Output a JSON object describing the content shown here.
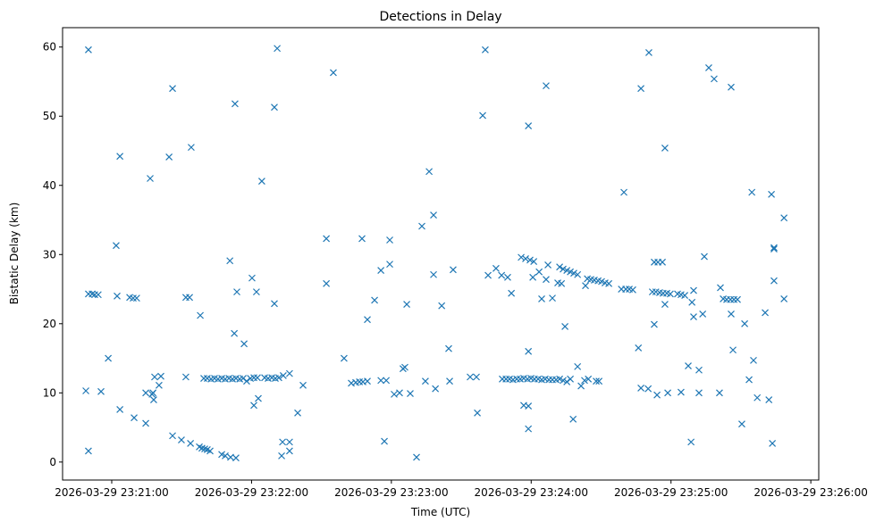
{
  "chart_data": {
    "type": "scatter",
    "title": "Detections in Delay",
    "xlabel": "Time (UTC)",
    "ylabel": "Bistatic Delay (km)",
    "x_unit": "seconds after 2026-03-29 23:20:00",
    "xlim": [
      38.9,
      363.4
    ],
    "ylim": [
      -2.6,
      62.8
    ],
    "grid": false,
    "marker": "x",
    "color": "#1f77b4",
    "xticks": [
      {
        "value": 60,
        "label": "2026-03-29 23:21:00"
      },
      {
        "value": 120,
        "label": "2026-03-29 23:22:00"
      },
      {
        "value": 180,
        "label": "2026-03-29 23:23:00"
      },
      {
        "value": 240,
        "label": "2026-03-29 23:24:00"
      },
      {
        "value": 300,
        "label": "2026-03-29 23:25:00"
      },
      {
        "value": 360,
        "label": "2026-03-29 23:26:00"
      }
    ],
    "yticks": [
      {
        "value": 0,
        "label": "0"
      },
      {
        "value": 10,
        "label": "10"
      },
      {
        "value": 20,
        "label": "20"
      },
      {
        "value": 30,
        "label": "30"
      },
      {
        "value": 40,
        "label": "40"
      },
      {
        "value": 50,
        "label": "50"
      },
      {
        "value": 60,
        "label": "60"
      }
    ],
    "points": [
      [
        48.9,
        10.3
      ],
      [
        50,
        59.6
      ],
      [
        50,
        1.6
      ],
      [
        50,
        24.3
      ],
      [
        51.6,
        24.3
      ],
      [
        52.7,
        24.2
      ],
      [
        54.2,
        24.2
      ],
      [
        55.4,
        10.2
      ],
      [
        58.5,
        15
      ],
      [
        61.9,
        31.3
      ],
      [
        62.3,
        24
      ],
      [
        63.5,
        44.2
      ],
      [
        63.5,
        7.6
      ],
      [
        67.7,
        23.8
      ],
      [
        69.2,
        23.7
      ],
      [
        70.7,
        23.7
      ],
      [
        69.6,
        6.4
      ],
      [
        74.6,
        5.6
      ],
      [
        74.6,
        10
      ],
      [
        76.5,
        41
      ],
      [
        77.3,
        9.8
      ],
      [
        78,
        9
      ],
      [
        77.7,
        10
      ],
      [
        78.4,
        12.3
      ],
      [
        80.3,
        11.1
      ],
      [
        81.1,
        12.4
      ],
      [
        84.6,
        44.1
      ],
      [
        86.1,
        54
      ],
      [
        86.1,
        3.8
      ],
      [
        89.9,
        3.2
      ],
      [
        91.8,
        12.3
      ],
      [
        91.8,
        23.8
      ],
      [
        93.4,
        23.8
      ],
      [
        93.8,
        2.7
      ],
      [
        94.1,
        45.5
      ],
      [
        98,
        21.2
      ],
      [
        97.6,
        2.2
      ],
      [
        98.7,
        2.0
      ],
      [
        99.9,
        1.9
      ],
      [
        101,
        1.8
      ],
      [
        102.2,
        1.6
      ],
      [
        99.5,
        12.1
      ],
      [
        101,
        12.1
      ],
      [
        102.6,
        12.0
      ],
      [
        104.1,
        12.1
      ],
      [
        105.6,
        12.0
      ],
      [
        107.2,
        12.1
      ],
      [
        108.7,
        12.0
      ],
      [
        110.3,
        12.1
      ],
      [
        111.8,
        12.0
      ],
      [
        113.3,
        12.1
      ],
      [
        114.9,
        12.0
      ],
      [
        116.4,
        12.1
      ],
      [
        117.9,
        11.7
      ],
      [
        119.5,
        12.1
      ],
      [
        121,
        12.2
      ],
      [
        122.5,
        12.2
      ],
      [
        125.6,
        12.2
      ],
      [
        127.1,
        12.1
      ],
      [
        128.7,
        12.2
      ],
      [
        130.2,
        12.1
      ],
      [
        131.7,
        12.2
      ],
      [
        107.2,
        1.1
      ],
      [
        108.7,
        0.9
      ],
      [
        111,
        0.7
      ],
      [
        113.3,
        0.6
      ],
      [
        110.7,
        29.1
      ],
      [
        112.6,
        18.6
      ],
      [
        112.9,
        51.8
      ],
      [
        113.7,
        24.6
      ],
      [
        116.8,
        17.1
      ],
      [
        120.2,
        26.6
      ],
      [
        121,
        8.2
      ],
      [
        122.1,
        24.6
      ],
      [
        122.9,
        9.2
      ],
      [
        124.4,
        40.6
      ],
      [
        129.8,
        51.3
      ],
      [
        129.8,
        22.9
      ],
      [
        131,
        59.8
      ],
      [
        132.9,
        0.9
      ],
      [
        133.3,
        2.9
      ],
      [
        136.3,
        2.9
      ],
      [
        136.3,
        1.6
      ],
      [
        133.6,
        12.5
      ],
      [
        136.3,
        12.8
      ],
      [
        139.8,
        7.1
      ],
      [
        142.1,
        11.1
      ],
      [
        152.1,
        32.3
      ],
      [
        152.1,
        25.8
      ],
      [
        155.1,
        56.3
      ],
      [
        159.7,
        15
      ],
      [
        162.8,
        11.4
      ],
      [
        164.7,
        11.5
      ],
      [
        166.3,
        11.6
      ],
      [
        167.8,
        11.6
      ],
      [
        169.7,
        11.7
      ],
      [
        167.4,
        32.3
      ],
      [
        169.7,
        20.6
      ],
      [
        172.8,
        23.4
      ],
      [
        175.5,
        27.7
      ],
      [
        175.5,
        11.8
      ],
      [
        177.8,
        11.8
      ],
      [
        177,
        3.0
      ],
      [
        179.3,
        28.6
      ],
      [
        179.3,
        32.1
      ],
      [
        181.2,
        9.8
      ],
      [
        183.5,
        10
      ],
      [
        185,
        13.5
      ],
      [
        185.8,
        13.7
      ],
      [
        186.6,
        22.8
      ],
      [
        188.1,
        9.9
      ],
      [
        190.8,
        0.7
      ],
      [
        193.1,
        34.1
      ],
      [
        194.6,
        11.7
      ],
      [
        196.2,
        42
      ],
      [
        198.1,
        35.7
      ],
      [
        198.1,
        27.1
      ],
      [
        198.9,
        10.6
      ],
      [
        201.6,
        22.6
      ],
      [
        204.6,
        16.4
      ],
      [
        205,
        11.7
      ],
      [
        206.5,
        27.8
      ],
      [
        213.8,
        12.3
      ],
      [
        216.5,
        12.3
      ],
      [
        216.9,
        7.1
      ],
      [
        219.2,
        50.1
      ],
      [
        220.3,
        59.6
      ],
      [
        221.5,
        27
      ],
      [
        224.9,
        28
      ],
      [
        227.3,
        27
      ],
      [
        229.9,
        26.7
      ],
      [
        231.5,
        24.4
      ],
      [
        227.6,
        12.0
      ],
      [
        229.2,
        12.0
      ],
      [
        230.7,
        12.0
      ],
      [
        232.2,
        11.9
      ],
      [
        233.8,
        12.0
      ],
      [
        235.3,
        12.0
      ],
      [
        236.8,
        12.1
      ],
      [
        238.4,
        12.0
      ],
      [
        239.9,
        12.1
      ],
      [
        241.4,
        12.0
      ],
      [
        243,
        12.0
      ],
      [
        244.5,
        11.9
      ],
      [
        246,
        12.0
      ],
      [
        247.6,
        11.9
      ],
      [
        249.1,
        11.9
      ],
      [
        250.7,
        11.9
      ],
      [
        252.2,
        12.0
      ],
      [
        253.7,
        11.8
      ],
      [
        255.3,
        11.6
      ],
      [
        256.8,
        12.0
      ],
      [
        235.7,
        29.6
      ],
      [
        237.6,
        29.4
      ],
      [
        239.5,
        29.2
      ],
      [
        241.1,
        29
      ],
      [
        236.8,
        8.2
      ],
      [
        238.8,
        8.1
      ],
      [
        238.8,
        16
      ],
      [
        238.8,
        4.8
      ],
      [
        238.8,
        48.6
      ],
      [
        240.7,
        26.7
      ],
      [
        243.4,
        27.5
      ],
      [
        244.5,
        23.6
      ],
      [
        246.4,
        54.4
      ],
      [
        246.4,
        26.4
      ],
      [
        247.2,
        28.5
      ],
      [
        249.1,
        23.7
      ],
      [
        252.2,
        28.2
      ],
      [
        253.7,
        27.9
      ],
      [
        255.3,
        27.7
      ],
      [
        256.8,
        27.5
      ],
      [
        258.3,
        27.3
      ],
      [
        259.9,
        27.1
      ],
      [
        251.4,
        25.9
      ],
      [
        253,
        25.8
      ],
      [
        254.5,
        19.6
      ],
      [
        258,
        6.2
      ],
      [
        259.9,
        13.8
      ],
      [
        261.4,
        11
      ],
      [
        262.9,
        11.8
      ],
      [
        264.5,
        12
      ],
      [
        263.3,
        25.5
      ],
      [
        264.1,
        26.5
      ],
      [
        265.6,
        26.4
      ],
      [
        267.1,
        26.3
      ],
      [
        268.7,
        26.2
      ],
      [
        270.2,
        26.1
      ],
      [
        271.7,
        25.9
      ],
      [
        273.3,
        25.8
      ],
      [
        267.9,
        11.7
      ],
      [
        269.1,
        11.7
      ],
      [
        279.8,
        39
      ],
      [
        278.7,
        25
      ],
      [
        280.6,
        25
      ],
      [
        282.1,
        25
      ],
      [
        283.6,
        24.9
      ],
      [
        286,
        16.5
      ],
      [
        287.1,
        54
      ],
      [
        287.1,
        10.7
      ],
      [
        290.2,
        10.6
      ],
      [
        290.5,
        59.2
      ],
      [
        292,
        24.6
      ],
      [
        293.5,
        24.6
      ],
      [
        295.1,
        24.5
      ],
      [
        296.6,
        24.4
      ],
      [
        298.2,
        24.4
      ],
      [
        299.7,
        24.3
      ],
      [
        292.8,
        28.9
      ],
      [
        294.4,
        28.9
      ],
      [
        296.3,
        28.9
      ],
      [
        292.8,
        19.9
      ],
      [
        294,
        9.7
      ],
      [
        297.4,
        45.4
      ],
      [
        297.4,
        22.8
      ],
      [
        298.6,
        10
      ],
      [
        302.8,
        24.3
      ],
      [
        304.3,
        24.2
      ],
      [
        305.9,
        24.1
      ],
      [
        304.3,
        10.1
      ],
      [
        307.4,
        13.9
      ],
      [
        308.6,
        2.9
      ],
      [
        309,
        23.1
      ],
      [
        309.7,
        21
      ],
      [
        309.7,
        24.8
      ],
      [
        312,
        13.3
      ],
      [
        312,
        10
      ],
      [
        313.6,
        21.4
      ],
      [
        314.3,
        29.7
      ],
      [
        316.2,
        57
      ],
      [
        318.5,
        55.4
      ],
      [
        321.2,
        25.2
      ],
      [
        320.8,
        10
      ],
      [
        322.4,
        23.6
      ],
      [
        323.9,
        23.5
      ],
      [
        325.5,
        23.5
      ],
      [
        327,
        23.5
      ],
      [
        328.5,
        23.5
      ],
      [
        325.8,
        54.2
      ],
      [
        325.8,
        21.4
      ],
      [
        326.6,
        16.2
      ],
      [
        330.4,
        5.5
      ],
      [
        331.6,
        20
      ],
      [
        333.5,
        11.9
      ],
      [
        334.7,
        39
      ],
      [
        335.4,
        14.7
      ],
      [
        337,
        9.3
      ],
      [
        340.4,
        21.6
      ],
      [
        342,
        9
      ],
      [
        343.1,
        38.7
      ],
      [
        343.5,
        2.7
      ],
      [
        344.2,
        31
      ],
      [
        344.2,
        30.8
      ],
      [
        344.2,
        26.2
      ],
      [
        348.5,
        35.3
      ],
      [
        348.5,
        23.6
      ]
    ]
  }
}
